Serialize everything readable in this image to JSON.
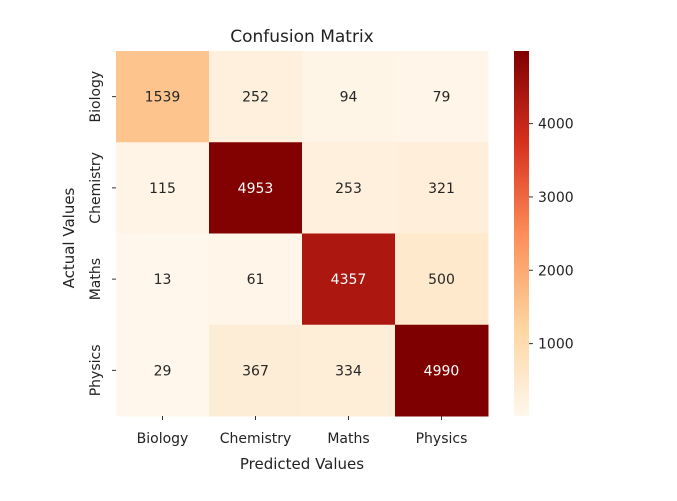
{
  "chart_data": {
    "type": "heatmap",
    "title": "Confusion Matrix",
    "xlabel": "Predicted Values",
    "ylabel": "Actual Values",
    "x_categories": [
      "Biology",
      "Chemistry",
      "Maths",
      "Physics"
    ],
    "y_categories": [
      "Biology",
      "Chemistry",
      "Maths",
      "Physics"
    ],
    "values": [
      [
        1539,
        252,
        94,
        79
      ],
      [
        115,
        4953,
        253,
        321
      ],
      [
        13,
        61,
        4357,
        500
      ],
      [
        29,
        367,
        334,
        4990
      ]
    ],
    "colormap": "OrRd",
    "color_range": [
      13,
      4990
    ],
    "colorbar_ticks": [
      1000,
      2000,
      3000,
      4000
    ],
    "colorbar_tick_labels": [
      "1000",
      "2000",
      "3000",
      "4000"
    ]
  }
}
